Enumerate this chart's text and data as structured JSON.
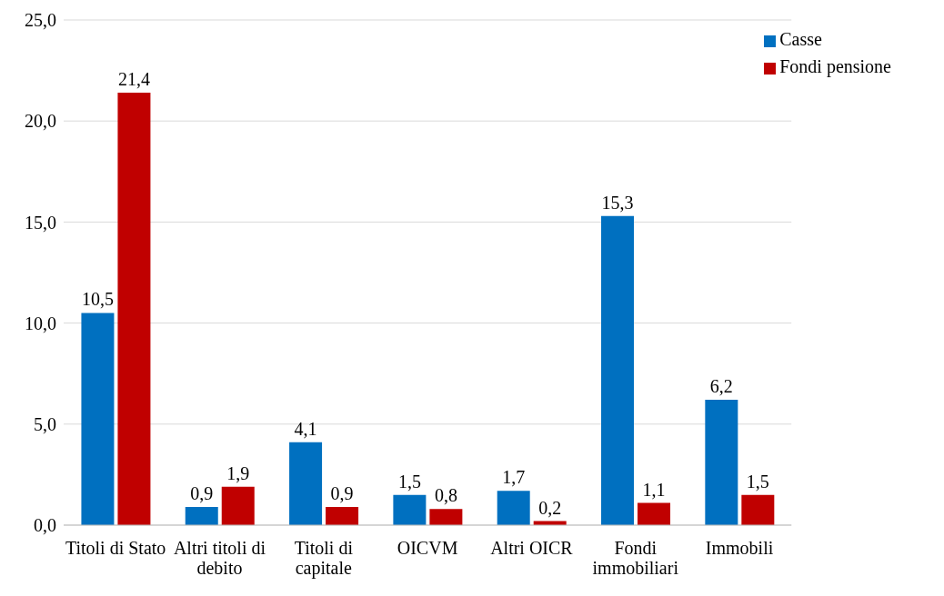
{
  "chart_data": {
    "type": "bar",
    "categories": [
      "Titoli di Stato",
      "Altri titoli di debito",
      "Titoli di capitale",
      "OICVM",
      "Altri OICR",
      "Fondi immobiliari",
      "Immobili"
    ],
    "series": [
      {
        "name": "Casse",
        "color": "#0070c0",
        "values": [
          10.5,
          0.9,
          4.1,
          1.5,
          1.7,
          15.3,
          6.2
        ],
        "value_labels": [
          "10,5",
          "0,9",
          "4,1",
          "1,5",
          "1,7",
          "15,3",
          "6,2"
        ]
      },
      {
        "name": "Fondi pensione",
        "color": "#c00000",
        "values": [
          21.4,
          1.9,
          0.9,
          0.8,
          0.2,
          1.1,
          1.5
        ],
        "value_labels": [
          "21,4",
          "1,9",
          "0,9",
          "0,8",
          "0,2",
          "1,1",
          "1,5"
        ]
      }
    ],
    "ylim": [
      0,
      25
    ],
    "yticks": [
      {
        "value": 0,
        "label": "0,0"
      },
      {
        "value": 5,
        "label": "5,0"
      },
      {
        "value": 10,
        "label": "10,0"
      },
      {
        "value": 15,
        "label": "15,0"
      },
      {
        "value": 20,
        "label": "20,0"
      },
      {
        "value": 25,
        "label": "25,0"
      }
    ],
    "grid": "y",
    "legend": "top right"
  }
}
